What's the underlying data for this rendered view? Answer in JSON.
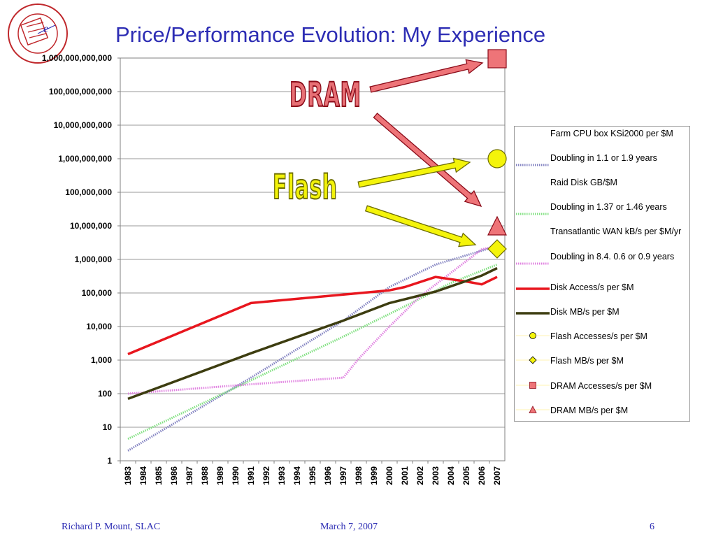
{
  "slide": {
    "title": "Price/Performance Evolution: My Experience",
    "logo_text": "STANFORD LINEAR ACCELERATOR CENTER",
    "logo_est": "ESTABLISHED 1962",
    "callout_dram": "DRAM",
    "callout_flash": "Flash",
    "footer_left": "Richard P. Mount,   SLAC",
    "footer_center": "March 7, 2007",
    "footer_right": "6",
    "colors": {
      "title": "#2d2db4",
      "dram": "#ee7478",
      "flash": "#f4f40a"
    }
  },
  "chart_data": {
    "type": "line",
    "yscale": "log",
    "ylim": [
      1,
      1000000000000
    ],
    "y_tick_labels": [
      "1",
      "10",
      "100",
      "1,000",
      "10,000",
      "100,000",
      "1,000,000",
      "10,000,000",
      "100,000,000",
      "1,000,000,000",
      "10,000,000,000",
      "100,000,000,000",
      "1,000,000,000,000"
    ],
    "categories": [
      "1983",
      "1984",
      "1985",
      "1986",
      "1987",
      "1988",
      "1989",
      "1990",
      "1991",
      "1992",
      "1993",
      "1994",
      "1995",
      "1996",
      "1997",
      "1998",
      "1999",
      "2000",
      "2001",
      "2002",
      "2003",
      "2004",
      "2005",
      "2006",
      "2007"
    ],
    "series": [
      {
        "name": "Farm CPU box KSi2000 per $M",
        "style": "none",
        "color": "#000000",
        "points": []
      },
      {
        "name": "Doubling in 1.1 or 1.9 years",
        "style": "dotted",
        "color": "#8080c0",
        "points": [
          [
            "1983",
            2
          ],
          [
            "1991",
            300
          ],
          [
            "1997",
            15000
          ],
          [
            "2000",
            150000
          ],
          [
            "2003",
            700000
          ],
          [
            "2007",
            2500000
          ]
        ]
      },
      {
        "name": "Raid Disk GB/$M",
        "style": "none",
        "color": "#000000",
        "points": []
      },
      {
        "name": "Doubling in 1.37 or 1.46 years",
        "style": "dotted",
        "color": "#80e080",
        "points": [
          [
            "1983",
            4.5
          ],
          [
            "1991",
            250
          ],
          [
            "1997",
            5000
          ],
          [
            "2001",
            40000
          ],
          [
            "2004",
            200000
          ],
          [
            "2007",
            700000
          ]
        ]
      },
      {
        "name": "Transatlantic WAN kB/s per $M/yr",
        "style": "none",
        "color": "#000000",
        "points": []
      },
      {
        "name": "Doubling in 8.4. 0.6 or 0.9 years",
        "style": "dotted",
        "color": "#e080e0",
        "points": [
          [
            "1983",
            100
          ],
          [
            "1991",
            190
          ],
          [
            "1997",
            300
          ],
          [
            "1998",
            1100
          ],
          [
            "2000",
            10000
          ],
          [
            "2002",
            80000
          ],
          [
            "2004",
            400000
          ],
          [
            "2006",
            2000000
          ],
          [
            "2007",
            2500000
          ]
        ]
      },
      {
        "name": "Disk Access/s per $M",
        "style": "solid",
        "color": "#e8161e",
        "points": [
          [
            "1983",
            1500
          ],
          [
            "1991",
            50000
          ],
          [
            "2000",
            120000
          ],
          [
            "2001",
            150000
          ],
          [
            "2003",
            300000
          ],
          [
            "2005",
            220000
          ],
          [
            "2006",
            180000
          ],
          [
            "2007",
            300000
          ]
        ]
      },
      {
        "name": "Disk MB/s per $M",
        "style": "solid",
        "color": "#3d3d10",
        "points": [
          [
            "1983",
            70
          ],
          [
            "1991",
            1600
          ],
          [
            "1997",
            15000
          ],
          [
            "2000",
            50000
          ],
          [
            "2003",
            110000
          ],
          [
            "2006",
            330000
          ],
          [
            "2007",
            550000
          ]
        ]
      },
      {
        "name": "Flash Accesses/s per $M",
        "style": "marker",
        "marker": "circle",
        "color": "#f4f40a",
        "points": []
      },
      {
        "name": "Flash MB/s per $M",
        "style": "marker",
        "marker": "diamond",
        "color": "#f4f40a",
        "points": []
      },
      {
        "name": "DRAM Accesses/s per $M",
        "style": "marker",
        "marker": "square",
        "color": "#ee7478",
        "points": []
      },
      {
        "name": "DRAM MB/s per $M",
        "style": "marker",
        "marker": "triangle",
        "color": "#ee7478",
        "points": []
      }
    ],
    "markers_outside_plot": [
      {
        "name": "DRAM Accesses/s per $M",
        "marker": "square",
        "value": 1000000000000
      },
      {
        "name": "Flash Accesses/s per $M",
        "marker": "circle",
        "value": 1000000000
      },
      {
        "name": "DRAM MB/s per $M",
        "marker": "triangle",
        "value": 6000000
      },
      {
        "name": "Flash MB/s per $M",
        "marker": "diamond",
        "value": 2000000
      }
    ],
    "grid": true,
    "legend_position": "right"
  }
}
